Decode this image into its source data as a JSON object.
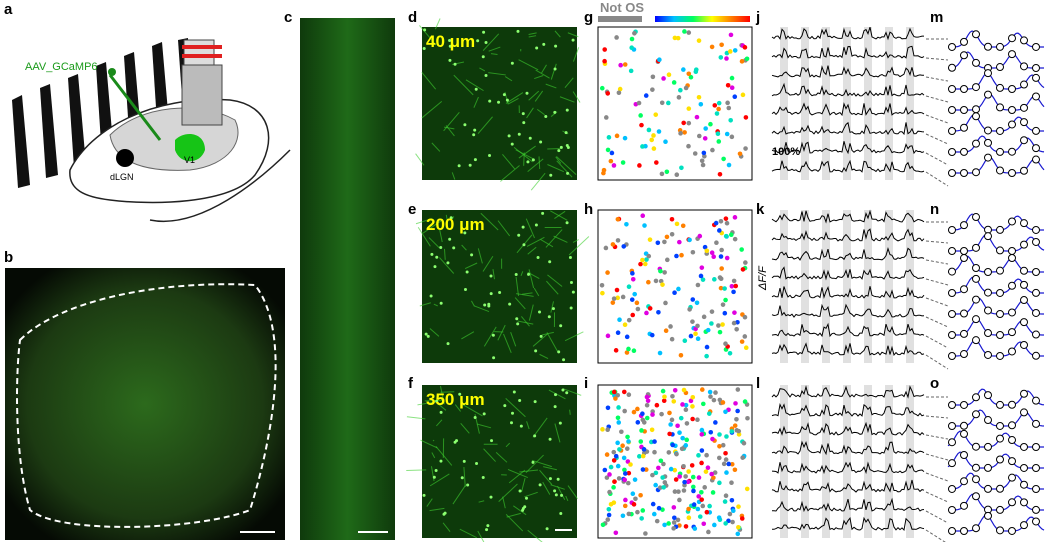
{
  "panels": {
    "a": "a",
    "b": "b",
    "c": "c",
    "d": "d",
    "e": "e",
    "f": "f",
    "g": "g",
    "h": "h",
    "i": "i",
    "j": "j",
    "k": "k",
    "l": "l",
    "m": "m",
    "n": "n",
    "o": "o"
  },
  "schematic": {
    "virus": "AAV_GCaMP6",
    "thalamus": "dLGN",
    "cortex": "V1"
  },
  "depths": {
    "d": "40 μm",
    "e": "200 μm",
    "f": "350 μm"
  },
  "orientation_map": {
    "not_os": "Not OS"
  },
  "traces": {
    "scale": "100%",
    "axis": "ΔF/F"
  }
}
